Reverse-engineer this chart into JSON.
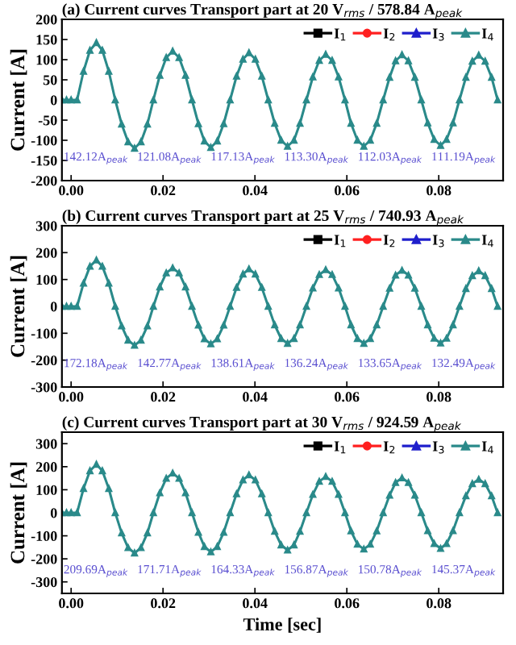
{
  "chart_data": [
    {
      "type": "line",
      "title": "(a) Current curves Transport part at 20 V$_{rms}$ / 578.84 A$_{peak}$",
      "ylabel": "Current [A]",
      "x": [
        -0.002,
        -0.001,
        0.0,
        0.0013,
        0.0027,
        0.0041,
        0.0055,
        0.0068,
        0.0082,
        0.0096,
        0.011,
        0.0124,
        0.0138,
        0.0152,
        0.0166,
        0.0179,
        0.0193,
        0.0207,
        0.0221,
        0.0235,
        0.0249,
        0.0263,
        0.0277,
        0.029,
        0.0304,
        0.0318,
        0.0332,
        0.0346,
        0.036,
        0.0374,
        0.0387,
        0.0401,
        0.0415,
        0.0429,
        0.0443,
        0.0457,
        0.0471,
        0.0485,
        0.0498,
        0.0512,
        0.0526,
        0.054,
        0.0554,
        0.0568,
        0.0582,
        0.0596,
        0.0609,
        0.0623,
        0.0637,
        0.0651,
        0.0665,
        0.0679,
        0.0693,
        0.0706,
        0.072,
        0.0734,
        0.0748,
        0.0762,
        0.0776,
        0.079,
        0.0804,
        0.0817,
        0.0831,
        0.0845,
        0.0859,
        0.0873,
        0.0887,
        0.0901,
        0.0915,
        0.0928
      ],
      "series": [
        {
          "name": "I$_{1}$",
          "color": "#000000",
          "marker": "square",
          "values": [
            null,
            null,
            null,
            null,
            null,
            null,
            null,
            null,
            null,
            null,
            null,
            null,
            null,
            null,
            null,
            null,
            null,
            null,
            null,
            null,
            null,
            null,
            null,
            null,
            null,
            null,
            null,
            null,
            null,
            null,
            null,
            null,
            null,
            null,
            null,
            null,
            null,
            null,
            null,
            null,
            null,
            null,
            null,
            null,
            null,
            null,
            null,
            null,
            null,
            null,
            null,
            null,
            null,
            null,
            null,
            null,
            null,
            null,
            null,
            null,
            null,
            null,
            null,
            null,
            null,
            null,
            null,
            null,
            null,
            null
          ]
        },
        {
          "name": "I$_{2}$",
          "color": "#ff2020",
          "marker": "circle",
          "values": [
            null,
            null,
            null,
            null,
            null,
            null,
            null,
            null,
            null,
            null,
            null,
            null,
            null,
            null,
            null,
            null,
            null,
            null,
            null,
            null,
            null,
            null,
            null,
            null,
            null,
            null,
            null,
            null,
            null,
            null,
            null,
            null,
            null,
            null,
            null,
            null,
            null,
            null,
            null,
            null,
            null,
            null,
            null,
            null,
            null,
            null,
            null,
            null,
            null,
            null,
            null,
            null,
            null,
            null,
            null,
            null,
            null,
            null,
            null,
            null,
            null,
            null,
            null,
            null,
            null,
            null,
            null,
            null,
            null,
            null
          ]
        },
        {
          "name": "I$_{3}$",
          "color": "#1f1fcc",
          "marker": "triangle",
          "values": [
            null,
            null,
            null,
            null,
            null,
            null,
            null,
            null,
            null,
            null,
            null,
            null,
            null,
            null,
            null,
            null,
            null,
            null,
            null,
            null,
            null,
            null,
            null,
            null,
            null,
            null,
            null,
            null,
            null,
            null,
            null,
            null,
            null,
            null,
            null,
            null,
            null,
            null,
            null,
            null,
            null,
            null,
            null,
            null,
            null,
            null,
            null,
            null,
            null,
            null,
            null,
            null,
            null,
            null,
            null,
            null,
            null,
            null,
            null,
            null,
            null,
            null,
            null,
            null,
            null,
            null,
            null,
            null,
            null,
            null
          ]
        },
        {
          "name": "I$_{4}$",
          "color": "#2a8a8a",
          "marker": "triangle",
          "values": [
            0,
            0,
            0,
            0,
            71,
            123,
            142,
            123,
            71,
            0,
            -60,
            -104,
            -120,
            -104,
            -60,
            0,
            61,
            105,
            121,
            105,
            61,
            0,
            -59,
            -102,
            -118,
            -102,
            -59,
            0,
            59,
            101,
            117,
            101,
            59,
            0,
            -58,
            -100,
            -115,
            -100,
            -58,
            0,
            57,
            98,
            113,
            98,
            57,
            0,
            -58,
            -100,
            -115,
            -100,
            -58,
            0,
            56,
            97,
            112,
            97,
            56,
            0,
            -57,
            -98,
            -113,
            -98,
            -57,
            0,
            56,
            96,
            111,
            96,
            56,
            0
          ]
        }
      ],
      "xlim": [
        -0.002,
        0.094
      ],
      "ylim": [
        -200,
        200
      ],
      "xticks": [
        {
          "value": 0,
          "label": "0.00"
        },
        {
          "value": 0.02,
          "label": "0.02"
        },
        {
          "value": 0.04,
          "label": "0.04"
        },
        {
          "value": 0.06,
          "label": "0.06"
        },
        {
          "value": 0.08,
          "label": "0.08"
        }
      ],
      "yticks": [
        -200,
        -150,
        -100,
        -50,
        0,
        50,
        100,
        150,
        200
      ],
      "legend": "top right",
      "grid": false,
      "annotations": [
        "142.12A$_{peak}$",
        "121.08A$_{peak}$",
        "117.13A$_{peak}$",
        "113.30A$_{peak}$",
        "112.03A$_{peak}$",
        "111.19A$_{peak}$"
      ]
    },
    {
      "type": "line",
      "title": "(b) Current curves Transport part at 25 V$_{rms}$ / 740.93 A$_{peak}$",
      "ylabel": "Current [A]",
      "x": [
        -0.002,
        -0.001,
        0.0,
        0.0013,
        0.0027,
        0.0041,
        0.0055,
        0.0068,
        0.0082,
        0.0096,
        0.011,
        0.0124,
        0.0138,
        0.0152,
        0.0166,
        0.0179,
        0.0193,
        0.0207,
        0.0221,
        0.0235,
        0.0249,
        0.0263,
        0.0277,
        0.029,
        0.0304,
        0.0318,
        0.0332,
        0.0346,
        0.036,
        0.0374,
        0.0387,
        0.0401,
        0.0415,
        0.0429,
        0.0443,
        0.0457,
        0.0471,
        0.0485,
        0.0498,
        0.0512,
        0.0526,
        0.054,
        0.0554,
        0.0568,
        0.0582,
        0.0596,
        0.0609,
        0.0623,
        0.0637,
        0.0651,
        0.0665,
        0.0679,
        0.0693,
        0.0706,
        0.072,
        0.0734,
        0.0748,
        0.0762,
        0.0776,
        0.079,
        0.0804,
        0.0817,
        0.0831,
        0.0845,
        0.0859,
        0.0873,
        0.0887,
        0.0901,
        0.0915,
        0.0928
      ],
      "series": [
        {
          "name": "I$_{1}$",
          "color": "#000000",
          "marker": "square",
          "values": [
            null,
            null,
            null,
            null,
            null,
            null,
            null,
            null,
            null,
            null,
            null,
            null,
            null,
            null,
            null,
            null,
            null,
            null,
            null,
            null,
            null,
            null,
            null,
            null,
            null,
            null,
            null,
            null,
            null,
            null,
            null,
            null,
            null,
            null,
            null,
            null,
            null,
            null,
            null,
            null,
            null,
            null,
            null,
            null,
            null,
            null,
            null,
            null,
            null,
            null,
            null,
            null,
            null,
            null,
            null,
            null,
            null,
            null,
            null,
            null,
            null,
            null,
            null,
            null,
            null,
            null,
            null,
            null,
            null,
            null
          ]
        },
        {
          "name": "I$_{2}$",
          "color": "#ff2020",
          "marker": "circle",
          "values": [
            null,
            null,
            null,
            null,
            null,
            null,
            null,
            null,
            null,
            null,
            null,
            null,
            null,
            null,
            null,
            null,
            null,
            null,
            null,
            null,
            null,
            null,
            null,
            null,
            null,
            null,
            null,
            null,
            null,
            null,
            null,
            null,
            null,
            null,
            null,
            null,
            null,
            null,
            null,
            null,
            null,
            null,
            null,
            null,
            null,
            null,
            null,
            null,
            null,
            null,
            null,
            null,
            null,
            null,
            null,
            null,
            null,
            null,
            null,
            null,
            null,
            null,
            null,
            null,
            null,
            null,
            null,
            null,
            null,
            null
          ]
        },
        {
          "name": "I$_{3}$",
          "color": "#1f1fcc",
          "marker": "triangle",
          "values": [
            null,
            null,
            null,
            null,
            null,
            null,
            null,
            null,
            null,
            null,
            null,
            null,
            null,
            null,
            null,
            null,
            null,
            null,
            null,
            null,
            null,
            null,
            null,
            null,
            null,
            null,
            null,
            null,
            null,
            null,
            null,
            null,
            null,
            null,
            null,
            null,
            null,
            null,
            null,
            null,
            null,
            null,
            null,
            null,
            null,
            null,
            null,
            null,
            null,
            null,
            null,
            null,
            null,
            null,
            null,
            null,
            null,
            null,
            null,
            null,
            null,
            null,
            null,
            null,
            null,
            null,
            null,
            null,
            null,
            null
          ]
        },
        {
          "name": "I$_{4}$",
          "color": "#2a8a8a",
          "marker": "triangle",
          "values": [
            0,
            0,
            0,
            0,
            86,
            149,
            172,
            149,
            86,
            0,
            -73,
            -126,
            -145,
            -126,
            -73,
            0,
            72,
            124,
            143,
            124,
            72,
            0,
            -70,
            -121,
            -140,
            -121,
            -70,
            0,
            70,
            120,
            139,
            120,
            70,
            0,
            -69,
            -120,
            -138,
            -120,
            -69,
            0,
            68,
            118,
            136,
            118,
            68,
            0,
            -69,
            -120,
            -138,
            -120,
            -69,
            0,
            67,
            116,
            134,
            116,
            67,
            0,
            -69,
            -119,
            -137,
            -119,
            -69,
            0,
            66,
            114,
            132,
            114,
            66,
            0
          ]
        }
      ],
      "xlim": [
        -0.002,
        0.094
      ],
      "ylim": [
        -300,
        300
      ],
      "xticks": [
        {
          "value": 0,
          "label": "0.00"
        },
        {
          "value": 0.02,
          "label": "0.02"
        },
        {
          "value": 0.04,
          "label": "0.04"
        },
        {
          "value": 0.06,
          "label": "0.06"
        },
        {
          "value": 0.08,
          "label": "0.08"
        }
      ],
      "yticks": [
        -300,
        -200,
        -100,
        0,
        100,
        200,
        300
      ],
      "legend": "top right",
      "grid": false,
      "annotations": [
        "172.18A$_{peak}$",
        "142.77A$_{peak}$",
        "138.61A$_{peak}$",
        "136.24A$_{peak}$",
        "133.65A$_{peak}$",
        "132.49A$_{peak}$"
      ]
    },
    {
      "type": "line",
      "title": "(c) Current curves Transport part at 30 V$_{rms}$ / 924.59 A$_{peak}$",
      "ylabel": "Current [A]",
      "xlabel": "Time [sec]",
      "x": [
        -0.002,
        -0.001,
        0.0,
        0.0013,
        0.0027,
        0.0041,
        0.0055,
        0.0068,
        0.0082,
        0.0096,
        0.011,
        0.0124,
        0.0138,
        0.0152,
        0.0166,
        0.0179,
        0.0193,
        0.0207,
        0.0221,
        0.0235,
        0.0249,
        0.0263,
        0.0277,
        0.029,
        0.0304,
        0.0318,
        0.0332,
        0.0346,
        0.036,
        0.0374,
        0.0387,
        0.0401,
        0.0415,
        0.0429,
        0.0443,
        0.0457,
        0.0471,
        0.0485,
        0.0498,
        0.0512,
        0.0526,
        0.054,
        0.0554,
        0.0568,
        0.0582,
        0.0596,
        0.0609,
        0.0623,
        0.0637,
        0.0651,
        0.0665,
        0.0679,
        0.0693,
        0.0706,
        0.072,
        0.0734,
        0.0748,
        0.0762,
        0.0776,
        0.079,
        0.0804,
        0.0817,
        0.0831,
        0.0845,
        0.0859,
        0.0873,
        0.0887,
        0.0901,
        0.0915,
        0.0928
      ],
      "series": [
        {
          "name": "I$_{1}$",
          "color": "#000000",
          "marker": "square",
          "values": [
            null,
            null,
            null,
            null,
            null,
            null,
            null,
            null,
            null,
            null,
            null,
            null,
            null,
            null,
            null,
            null,
            null,
            null,
            null,
            null,
            null,
            null,
            null,
            null,
            null,
            null,
            null,
            null,
            null,
            null,
            null,
            null,
            null,
            null,
            null,
            null,
            null,
            null,
            null,
            null,
            null,
            null,
            null,
            null,
            null,
            null,
            null,
            null,
            null,
            null,
            null,
            null,
            null,
            null,
            null,
            null,
            null,
            null,
            null,
            null,
            null,
            null,
            null,
            null,
            null,
            null,
            null,
            null,
            null,
            null
          ]
        },
        {
          "name": "I$_{2}$",
          "color": "#ff2020",
          "marker": "circle",
          "values": [
            null,
            null,
            null,
            null,
            null,
            null,
            null,
            null,
            null,
            null,
            null,
            null,
            null,
            null,
            null,
            null,
            null,
            null,
            null,
            null,
            null,
            null,
            null,
            null,
            null,
            null,
            null,
            null,
            null,
            null,
            null,
            null,
            null,
            null,
            null,
            null,
            null,
            null,
            null,
            null,
            null,
            null,
            null,
            null,
            null,
            null,
            null,
            null,
            null,
            null,
            null,
            null,
            null,
            null,
            null,
            null,
            null,
            null,
            null,
            null,
            null,
            null,
            null,
            null,
            null,
            null,
            null,
            null,
            null,
            null
          ]
        },
        {
          "name": "I$_{3}$",
          "color": "#1f1fcc",
          "marker": "triangle",
          "values": [
            null,
            null,
            null,
            null,
            null,
            null,
            null,
            null,
            null,
            null,
            null,
            null,
            null,
            null,
            null,
            null,
            null,
            null,
            null,
            null,
            null,
            null,
            null,
            null,
            null,
            null,
            null,
            null,
            null,
            null,
            null,
            null,
            null,
            null,
            null,
            null,
            null,
            null,
            null,
            null,
            null,
            null,
            null,
            null,
            null,
            null,
            null,
            null,
            null,
            null,
            null,
            null,
            null,
            null,
            null,
            null,
            null,
            null,
            null,
            null,
            null,
            null,
            null,
            null,
            null,
            null,
            null,
            null,
            null,
            null
          ]
        },
        {
          "name": "I$_{4}$",
          "color": "#2a8a8a",
          "marker": "triangle",
          "values": [
            0,
            0,
            0,
            0,
            105,
            182,
            210,
            182,
            105,
            0,
            -88,
            -152,
            -175,
            -152,
            -88,
            0,
            86,
            149,
            172,
            149,
            86,
            0,
            -85,
            -147,
            -170,
            -147,
            -85,
            0,
            82,
            142,
            164,
            142,
            82,
            0,
            -81,
            -140,
            -162,
            -140,
            -81,
            0,
            79,
            136,
            157,
            136,
            79,
            0,
            -79,
            -137,
            -158,
            -137,
            -79,
            0,
            76,
            131,
            151,
            131,
            76,
            0,
            -78,
            -134,
            -155,
            -134,
            -78,
            0,
            73,
            126,
            145,
            126,
            73,
            0
          ]
        }
      ],
      "xlim": [
        -0.002,
        0.094
      ],
      "ylim": [
        -350,
        350
      ],
      "xticks": [
        {
          "value": 0,
          "label": "0.00"
        },
        {
          "value": 0.02,
          "label": "0.02"
        },
        {
          "value": 0.04,
          "label": "0.04"
        },
        {
          "value": 0.06,
          "label": "0.06"
        },
        {
          "value": 0.08,
          "label": "0.08"
        }
      ],
      "yticks": [
        -300,
        -200,
        -100,
        0,
        100,
        200,
        300
      ],
      "legend": "top right",
      "grid": false,
      "annotations": [
        "209.69A$_{peak}$",
        "171.71A$_{peak}$",
        "164.33A$_{peak}$",
        "156.87A$_{peak}$",
        "150.78A$_{peak}$",
        "145.37A$_{peak}$"
      ]
    }
  ]
}
